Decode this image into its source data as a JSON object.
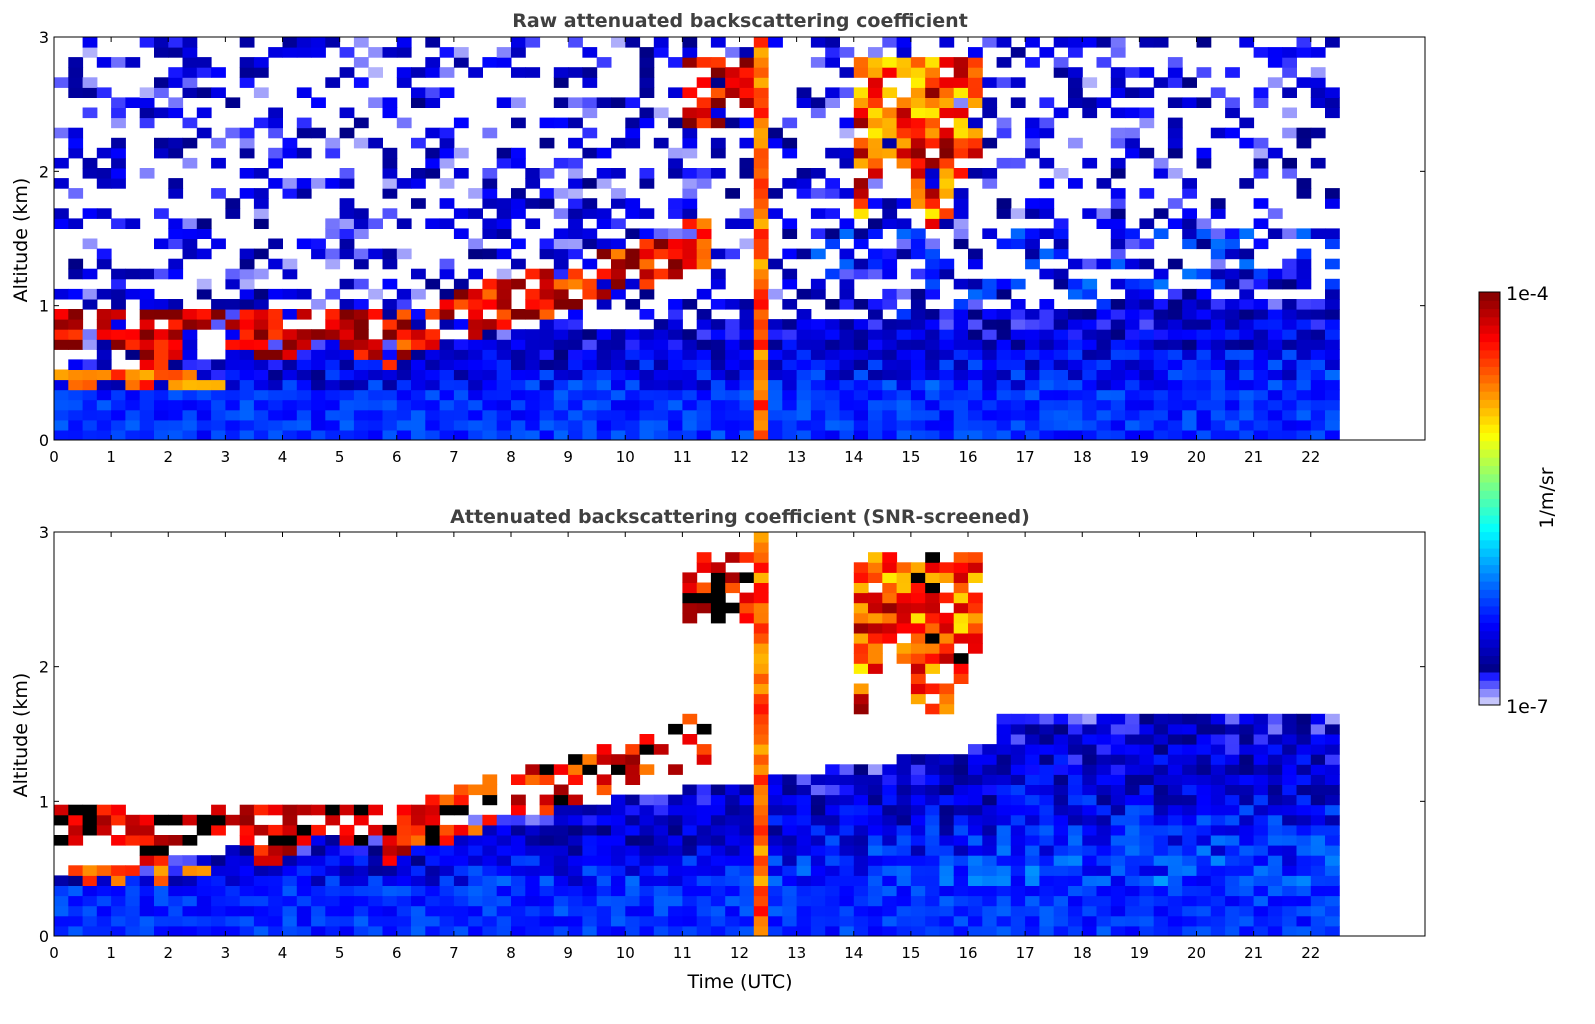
{
  "chart_data": [
    {
      "type": "heatmap",
      "title": "Raw attenuated backscattering coefficient",
      "xlabel": "",
      "ylabel": "Altitude (km)",
      "xlim": [
        0,
        24
      ],
      "ylim": [
        0,
        3
      ],
      "data_time_range": [
        0,
        22.5
      ],
      "xticks": [
        "0",
        "1",
        "2",
        "3",
        "4",
        "5",
        "6",
        "7",
        "8",
        "9",
        "10",
        "11",
        "12",
        "13",
        "14",
        "15",
        "16",
        "17",
        "18",
        "19",
        "20",
        "21",
        "22"
      ],
      "yticks": [
        "0",
        "1",
        "2",
        "3"
      ],
      "screened": false,
      "features": [
        {
          "kind": "cloud",
          "t": [
            0,
            6
          ],
          "z": [
            0.6,
            0.95
          ],
          "log10_value": -4.1
        },
        {
          "kind": "cloud",
          "t": [
            0,
            3
          ],
          "z": [
            0.3,
            0.5
          ],
          "log10_value": -4.5
        },
        {
          "kind": "cloud",
          "t": [
            6,
            11.5
          ],
          "z_start": [
            0.6,
            0.9
          ],
          "z_end": [
            1.3,
            1.6
          ],
          "log10_value": -4.3
        },
        {
          "kind": "cloud",
          "t": [
            11,
            12.2
          ],
          "z": [
            2.3,
            2.8
          ],
          "log10_value": -4.2
        },
        {
          "kind": "cloud",
          "t": [
            14,
            16.2
          ],
          "z": [
            1.8,
            2.8
          ],
          "log10_value": -4.4
        },
        {
          "kind": "precipitation",
          "t": [
            12.2,
            12.5
          ],
          "z": [
            0,
            3
          ],
          "log10_value": -4.8
        },
        {
          "kind": "boundary_layer",
          "t": [
            0,
            22.5
          ],
          "z": [
            0,
            0.5
          ],
          "log10_value": -6.2
        }
      ]
    },
    {
      "type": "heatmap",
      "title": "Attenuated backscattering coefficient (SNR-screened)",
      "xlabel": "Time (UTC)",
      "ylabel": "Altitude (km)",
      "xlim": [
        0,
        24
      ],
      "ylim": [
        0,
        3
      ],
      "data_time_range": [
        0,
        22.5
      ],
      "xticks": [
        "0",
        "1",
        "2",
        "3",
        "4",
        "5",
        "6",
        "7",
        "8",
        "9",
        "10",
        "11",
        "12",
        "13",
        "14",
        "15",
        "16",
        "17",
        "18",
        "19",
        "20",
        "21",
        "22"
      ],
      "yticks": [
        "0",
        "1",
        "2",
        "3"
      ],
      "screened": true
    }
  ],
  "colorbar": {
    "label": "1/m/sr",
    "max_label": "1e-4",
    "min_label": "1e-7",
    "log10_range": [
      -7,
      -4
    ]
  }
}
